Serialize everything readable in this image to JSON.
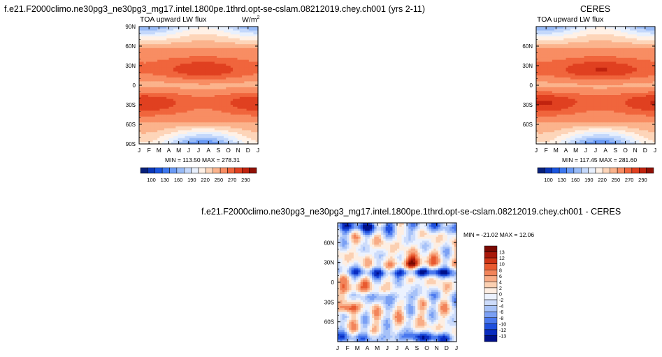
{
  "chart_data": [
    {
      "type": "heatmap",
      "title": "f.e21.F2000climo.ne30pg3_ne30pg3_mg17.intel.1800pe.1thrd.opt-se-cslam.08212019.chey.ch001 (yrs 2-11)",
      "left_string": "TOA upward LW flux",
      "units": "W/m2",
      "x_ticks": [
        "J",
        "F",
        "M",
        "A",
        "M",
        "J",
        "J",
        "A",
        "S",
        "O",
        "N",
        "D",
        "J"
      ],
      "y_ticks": [
        "90N",
        "60N",
        "30N",
        "0",
        "30S",
        "60S",
        "90S"
      ],
      "y_range": [
        -90,
        90
      ],
      "stats": "MIN = 113.50   MAX = 278.31",
      "colorbar_labels": [
        "100",
        "130",
        "160",
        "190",
        "220",
        "250",
        "270",
        "290"
      ],
      "field": "toa_lw_model"
    },
    {
      "type": "heatmap",
      "title": "CERES",
      "left_string": "TOA upward LW flux",
      "x_ticks": [
        "J",
        "F",
        "M",
        "A",
        "M",
        "J",
        "J",
        "A",
        "S",
        "O",
        "N",
        "D",
        "J"
      ],
      "y_ticks": [
        "60N",
        "30N",
        "0",
        "30S",
        "60S"
      ],
      "y_range": [
        -90,
        90
      ],
      "stats": "MIN = 117.45   MAX = 281.60",
      "colorbar_labels": [
        "100",
        "130",
        "160",
        "190",
        "220",
        "250",
        "270",
        "290"
      ],
      "field": "toa_lw_ceres"
    },
    {
      "type": "heatmap",
      "title": "f.e21.F2000climo.ne30pg3_ne30pg3_mg17.intel.1800pe.1thrd.opt-se-cslam.08212019.chey.ch001 - CERES",
      "x_ticks": [
        "J",
        "F",
        "M",
        "A",
        "M",
        "J",
        "J",
        "A",
        "S",
        "O",
        "N",
        "D",
        "J"
      ],
      "y_ticks": [
        "60N",
        "30N",
        "0",
        "30S",
        "60S"
      ],
      "y_range": [
        -90,
        90
      ],
      "stats": "MIN = -21.02   MAX =  12.06",
      "colorbar_labels": [
        "13",
        "12",
        "10",
        "8",
        "6",
        "4",
        "2",
        "0",
        "-2",
        "-4",
        "-6",
        "-8",
        "-10",
        "-12",
        "-13"
      ],
      "field": "toa_lw_diff"
    }
  ],
  "colors": {
    "seq": [
      "#08207a",
      "#0b37b8",
      "#1a55de",
      "#3d78ef",
      "#6a9af5",
      "#98bbf7",
      "#c4d8fb",
      "#e8f0fd",
      "#fff1e6",
      "#fdd5b9",
      "#fbb38c",
      "#f88d63",
      "#f0653c",
      "#e04020",
      "#c0230e",
      "#901005"
    ],
    "div": [
      "#00108a",
      "#0a2cc0",
      "#1f4fdd",
      "#4a78ee",
      "#7ba0f4",
      "#a7c2f8",
      "#cddcfb",
      "#ecf2fe",
      "#fdeee2",
      "#fbd0b2",
      "#f8ac86",
      "#f2845a",
      "#e85a30",
      "#cf3415",
      "#a8180a",
      "#7a0a03"
    ]
  },
  "legend_units_label": "W/m",
  "legend_units_power": "2"
}
